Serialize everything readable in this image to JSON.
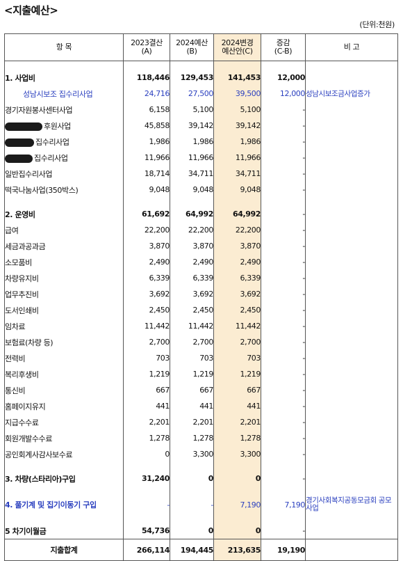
{
  "title": "<지출예산>",
  "unit": "(단위:천원)",
  "headers": {
    "item": "항   목",
    "a": "2023결산\n(A)",
    "b": "2024예산\n(B)",
    "c": "2024변경\n예산안(C)",
    "cb": "증감\n(C-B)",
    "note": "비     고"
  },
  "rows": [
    {
      "item": "1. 사업비",
      "a": "118,446",
      "b": "129,453",
      "c": "141,453",
      "cb": "12,000",
      "note": ""
    },
    {
      "item": "성남시보조 집수리사업",
      "a": "24,716",
      "b": "27,500",
      "c": "39,500",
      "cb": "12,000",
      "note": "성남시보조금사업증가"
    },
    {
      "item": "경기자원봉사센터사업",
      "a": "6,158",
      "b": "5,100",
      "c": "5,100",
      "cb": "-",
      "note": ""
    },
    {
      "item": "후원사업",
      "a": "45,858",
      "b": "39,142",
      "c": "39,142",
      "cb": "-",
      "note": ""
    },
    {
      "item": "집수리사업",
      "a": "1,986",
      "b": "1,986",
      "c": "1,986",
      "cb": "-",
      "note": ""
    },
    {
      "item": "집수리사업",
      "a": "11,966",
      "b": "11,966",
      "c": "11,966",
      "cb": "-",
      "note": ""
    },
    {
      "item": "일반집수리사업",
      "a": "18,714",
      "b": "34,711",
      "c": "34,711",
      "cb": "-",
      "note": ""
    },
    {
      "item": "떡국나눔사업(350박스)",
      "a": "9,048",
      "b": "9,048",
      "c": "9,048",
      "cb": "-",
      "note": ""
    },
    {
      "item": "2. 운영비",
      "a": "61,692",
      "b": "64,992",
      "c": "64,992",
      "cb": "-",
      "note": ""
    },
    {
      "item": "급여",
      "a": "22,200",
      "b": "22,200",
      "c": "22,200",
      "cb": "-",
      "note": ""
    },
    {
      "item": "세금과공과금",
      "a": "3,870",
      "b": "3,870",
      "c": "3,870",
      "cb": "-",
      "note": ""
    },
    {
      "item": "소모품비",
      "a": "2,490",
      "b": "2,490",
      "c": "2,490",
      "cb": "-",
      "note": ""
    },
    {
      "item": "차량유지비",
      "a": "6,339",
      "b": "6,339",
      "c": "6,339",
      "cb": "-",
      "note": ""
    },
    {
      "item": "업무추진비",
      "a": "3,692",
      "b": "3,692",
      "c": "3,692",
      "cb": "-",
      "note": ""
    },
    {
      "item": "도서인쇄비",
      "a": "2,450",
      "b": "2,450",
      "c": "2,450",
      "cb": "-",
      "note": ""
    },
    {
      "item": "임차료",
      "a": "11,442",
      "b": "11,442",
      "c": "11,442",
      "cb": "-",
      "note": ""
    },
    {
      "item": "보험료(차량 등)",
      "a": "2,700",
      "b": "2,700",
      "c": "2,700",
      "cb": "-",
      "note": ""
    },
    {
      "item": "전력비",
      "a": "703",
      "b": "703",
      "c": "703",
      "cb": "-",
      "note": ""
    },
    {
      "item": "복리후생비",
      "a": "1,219",
      "b": "1,219",
      "c": "1,219",
      "cb": "-",
      "note": ""
    },
    {
      "item": "통신비",
      "a": "667",
      "b": "667",
      "c": "667",
      "cb": "-",
      "note": ""
    },
    {
      "item": "홈페이지유지",
      "a": "441",
      "b": "441",
      "c": "441",
      "cb": "-",
      "note": ""
    },
    {
      "item": "지급수수료",
      "a": "2,201",
      "b": "2,201",
      "c": "2,201",
      "cb": "-",
      "note": ""
    },
    {
      "item": "회원개발수수료",
      "a": "1,278",
      "b": "1,278",
      "c": "1,278",
      "cb": "-",
      "note": ""
    },
    {
      "item": "공인회계사감사보수료",
      "a": "0",
      "b": "3,300",
      "c": "3,300",
      "cb": "-",
      "note": ""
    },
    {
      "item": "3. 차량(스타리아)구입",
      "a": "31,240",
      "b": "0",
      "c": "0",
      "cb": "-",
      "note": ""
    },
    {
      "item": "4. 풀기계 및 집기이동기 구입",
      "a": "-",
      "b": "-",
      "c": "7,190",
      "cb": "7,190",
      "note": "경기사회복지공동모금회 공모사업"
    },
    {
      "item": "5 차기이월금",
      "a": "54,736",
      "b": "0",
      "c": "0",
      "cb": "-",
      "note": ""
    }
  ],
  "total": {
    "item": "지출합계",
    "a": "266,114",
    "b": "194,445",
    "c": "213,635",
    "cb": "19,190",
    "note": ""
  },
  "colors": {
    "highlight": "#fbecd2",
    "blue_text": "#2a3fbf",
    "border": "#555555"
  }
}
